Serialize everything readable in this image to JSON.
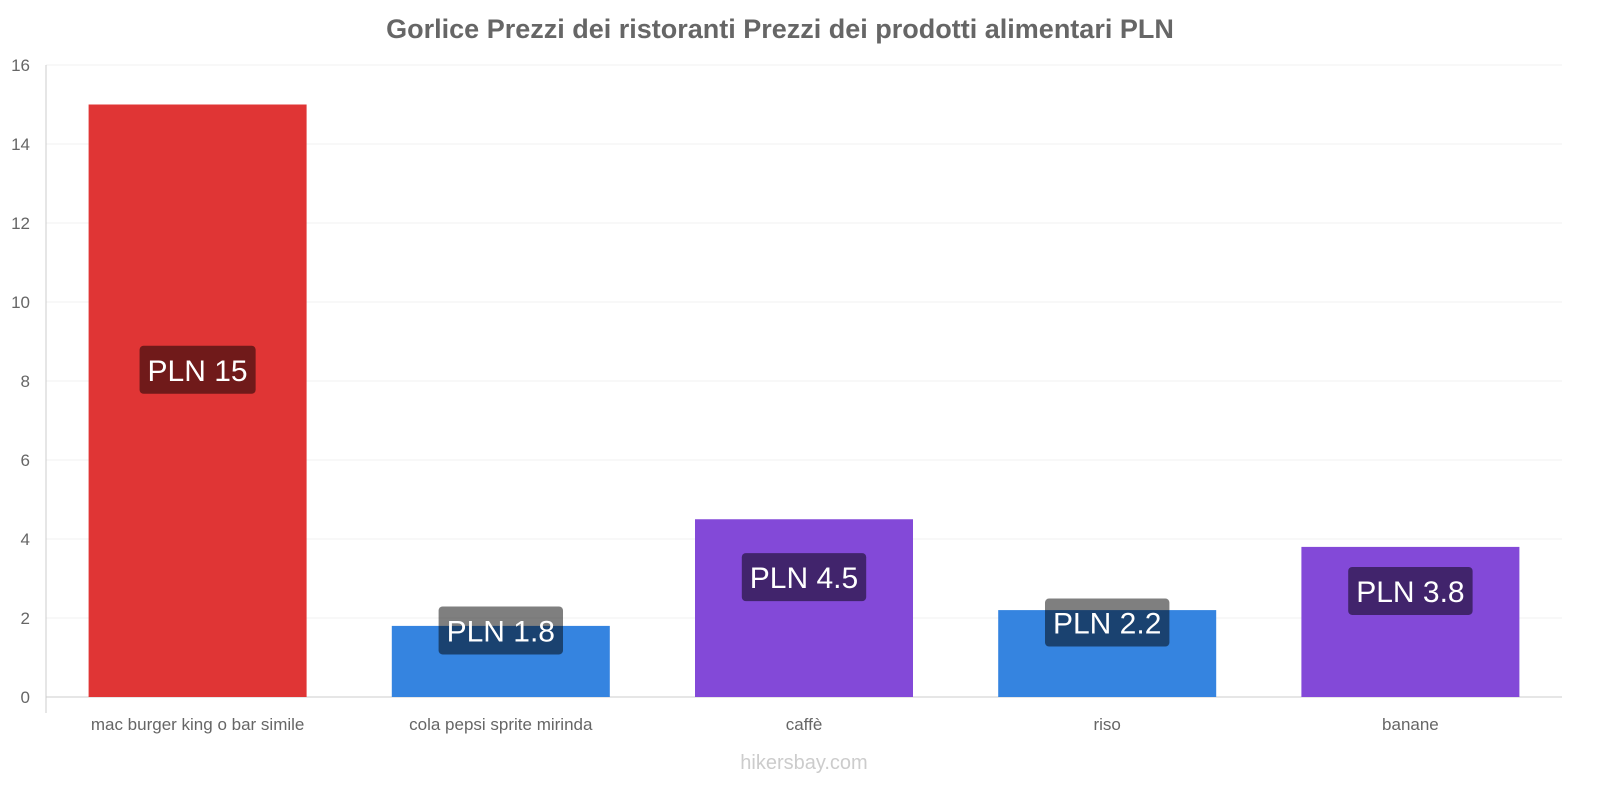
{
  "chart_data": {
    "type": "bar",
    "title": "Gorlice Prezzi dei ristoranti Prezzi dei prodotti alimentari PLN",
    "categories": [
      "mac burger king o bar simile",
      "cola pepsi sprite mirinda",
      "caffè",
      "riso",
      "banane"
    ],
    "values": [
      15,
      1.8,
      4.5,
      2.2,
      3.8
    ],
    "data_labels": [
      "PLN 15",
      "PLN 1.8",
      "PLN 4.5",
      "PLN 2.2",
      "PLN 3.8"
    ],
    "colors": [
      "#e03535",
      "#3584e0",
      "#8349d8",
      "#3584e0",
      "#8349d8"
    ],
    "xlabel": "",
    "ylabel": "",
    "ylim": [
      0,
      16
    ],
    "yticks": [
      0,
      2,
      4,
      6,
      8,
      10,
      12,
      14,
      16
    ],
    "grid": true
  },
  "footer": "hikersbay.com"
}
